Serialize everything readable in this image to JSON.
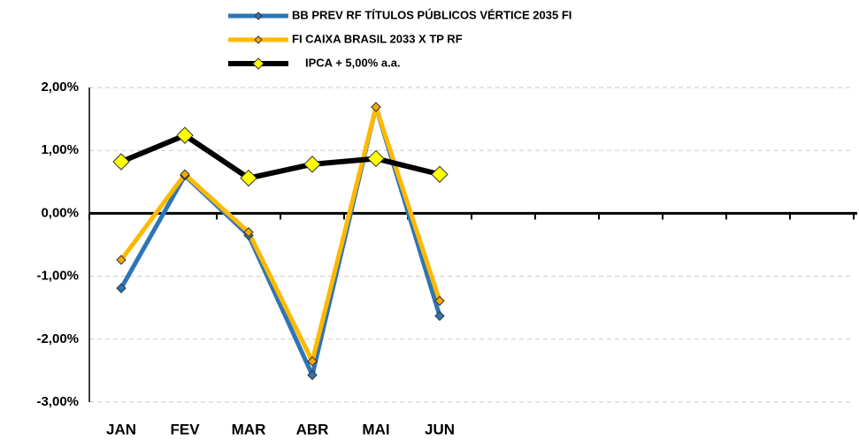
{
  "chart_data": {
    "type": "line",
    "categories": [
      "JAN",
      "FEV",
      "MAR",
      "ABR",
      "MAI",
      "JUN",
      null,
      null,
      null,
      null,
      null,
      null
    ],
    "series": [
      {
        "name": "BB PREV RF TÍTULOS PÚBLICOS VÉRTICE 2035 FI",
        "color": "#2e75b6",
        "marker_color": "#2e75b6",
        "values": [
          -1.19,
          0.6,
          -0.35,
          -2.57,
          1.69,
          -1.63,
          null,
          null,
          null,
          null,
          null,
          null
        ]
      },
      {
        "name": "FI CAIXA BRASIL 2033 X TP RF",
        "color": "#ffb900",
        "marker_color": "#f4a900",
        "values": [
          -0.74,
          0.62,
          -0.3,
          -2.35,
          1.69,
          -1.39,
          null,
          null,
          null,
          null,
          null,
          null
        ]
      },
      {
        "name": "IPCA + 5,00% a.a.",
        "color": "#000000",
        "marker_color": "#ffff00",
        "values": [
          0.82,
          1.24,
          0.56,
          0.78,
          0.87,
          0.62,
          null,
          null,
          null,
          null,
          null,
          null
        ]
      }
    ],
    "ylim": [
      -3,
      2
    ],
    "yticks": [
      {
        "value": 2,
        "label": "2,00%"
      },
      {
        "value": 1,
        "label": "1,00%"
      },
      {
        "value": 0,
        "label": "0,00%"
      },
      {
        "value": -1,
        "label": "-1,00%"
      },
      {
        "value": -2,
        "label": "-2,00%"
      },
      {
        "value": -3,
        "label": "-3,00%"
      }
    ],
    "grid": true,
    "legend": "top"
  }
}
